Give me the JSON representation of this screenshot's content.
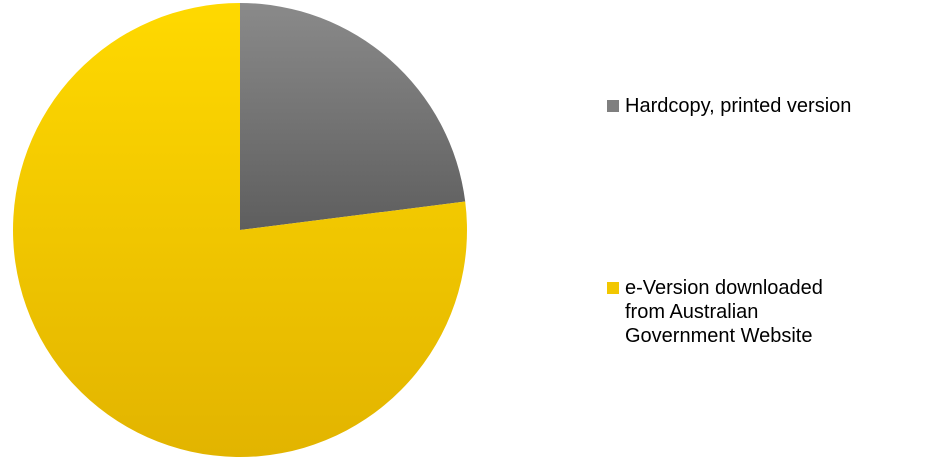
{
  "chart_data": {
    "type": "pie",
    "start_angle": "12 o'clock",
    "direction": "clockwise",
    "slices": [
      {
        "label": "Hardcopy, printed version",
        "value": 23,
        "color": "#7f7f7f"
      },
      {
        "label": "e-Version downloaded\nfrom Australian\nGovernment Website",
        "value": 77,
        "color": "#f2c700"
      }
    ],
    "legend_position": "right"
  }
}
